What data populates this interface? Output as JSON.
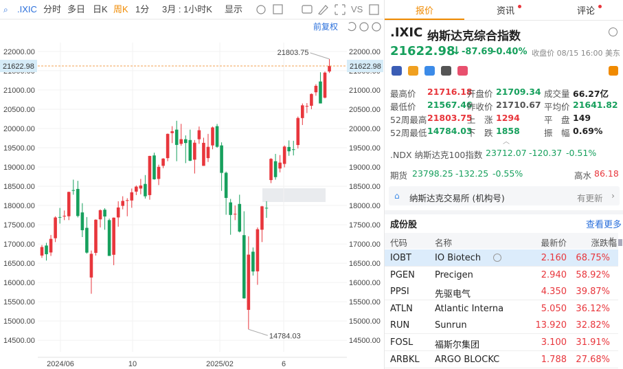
{
  "toolbar": {
    "symbol": ".IXIC",
    "tabs": [
      "分时",
      "多日",
      "日K",
      "周K",
      "1分",
      "3月 : 1小时K",
      "显示"
    ],
    "vs": "VS",
    "adjust": "前复权"
  },
  "chart_data": {
    "type": "candlestick",
    "ohlc": [
      [
        16700,
        16975,
        16640,
        16921
      ],
      [
        16960,
        17030,
        16570,
        16735
      ],
      [
        16780,
        17235,
        16690,
        17133
      ],
      [
        17150,
        17720,
        17050,
        17689
      ],
      [
        17700,
        17936,
        17530,
        17689
      ],
      [
        17720,
        17870,
        17620,
        17733
      ],
      [
        17720,
        18360,
        17620,
        18352
      ],
      [
        18400,
        18671,
        18280,
        18398
      ],
      [
        18430,
        18640,
        17690,
        17727
      ],
      [
        17820,
        18060,
        17180,
        17358
      ],
      [
        17420,
        17700,
        16750,
        16776
      ],
      [
        16130,
        16830,
        15708,
        16745
      ],
      [
        16770,
        17640,
        16700,
        17631
      ],
      [
        17640,
        17900,
        17430,
        17878
      ],
      [
        17890,
        17930,
        17370,
        17714
      ],
      [
        17620,
        17660,
        16690,
        16691
      ],
      [
        16720,
        17690,
        16450,
        17684
      ],
      [
        17690,
        18110,
        17450,
        17948
      ],
      [
        17990,
        18240,
        17900,
        18119
      ],
      [
        18130,
        18190,
        17720,
        18138
      ],
      [
        18130,
        18440,
        17940,
        18343
      ],
      [
        18360,
        18520,
        18270,
        18490
      ],
      [
        18440,
        18690,
        18290,
        18519
      ],
      [
        18560,
        18790,
        18180,
        18239
      ],
      [
        18270,
        19290,
        18150,
        19287
      ],
      [
        19300,
        19370,
        18670,
        18680
      ],
      [
        18690,
        19060,
        18530,
        19004
      ],
      [
        19030,
        19230,
        18970,
        19218
      ],
      [
        19230,
        19870,
        19150,
        19860
      ],
      [
        19880,
        20060,
        19620,
        19927
      ],
      [
        19970,
        20200,
        19150,
        19573
      ],
      [
        19600,
        20120,
        19550,
        19722
      ],
      [
        19720,
        19820,
        19100,
        19622
      ],
      [
        19700,
        19970,
        19150,
        19162
      ],
      [
        19190,
        19700,
        18830,
        19630
      ],
      [
        19720,
        20050,
        19600,
        19954
      ],
      [
        19030,
        19760,
        19030,
        19627
      ],
      [
        19230,
        19860,
        19130,
        19523
      ],
      [
        19560,
        20050,
        19460,
        20027
      ],
      [
        20060,
        20118,
        19500,
        19524
      ],
      [
        19560,
        19640,
        18380,
        18847
      ],
      [
        18850,
        18880,
        17760,
        18196
      ],
      [
        18080,
        18170,
        17240,
        17754
      ],
      [
        17770,
        18000,
        17620,
        17784
      ],
      [
        18040,
        18280,
        17300,
        17323
      ],
      [
        17230,
        17850,
        15580,
        15588
      ],
      [
        15290,
        17200,
        14784.03,
        16724
      ],
      [
        16800,
        16910,
        16180,
        16286
      ],
      [
        16290,
        17430,
        15940,
        17383
      ],
      [
        17370,
        17990,
        17050,
        17978
      ],
      [
        17940,
        18110,
        17680,
        17929
      ],
      [
        18660,
        19230,
        18580,
        19211
      ],
      [
        19150,
        19340,
        18670,
        18737
      ],
      [
        18960,
        19310,
        18860,
        19114
      ],
      [
        19080,
        19560,
        18990,
        19530
      ],
      [
        19520,
        19690,
        19290,
        19407
      ],
      [
        19460,
        19680,
        19300,
        19447
      ],
      [
        19570,
        20310,
        19480,
        20273
      ],
      [
        20270,
        20650,
        20090,
        20601
      ],
      [
        20570,
        20660,
        20400,
        20586
      ],
      [
        20590,
        20910,
        20500,
        20896
      ],
      [
        20940,
        21150,
        20850,
        21108
      ],
      [
        21220,
        21460,
        20650,
        20650
      ],
      [
        20800,
        21480,
        20780,
        21450
      ],
      [
        21480,
        21803.75,
        21440,
        21622.98
      ]
    ],
    "xtick_labels": [
      "2024/06",
      "10",
      "2025/02",
      "6"
    ],
    "ylim": [
      14200,
      22230
    ],
    "yticks": [
      {
        "value": 22000,
        "label": "22000.00"
      },
      {
        "value": 21500,
        "label": "21500.00"
      },
      {
        "value": 21000,
        "label": "21000.00"
      },
      {
        "value": 20500,
        "label": "20500.00"
      },
      {
        "value": 20000,
        "label": "20000.00"
      },
      {
        "value": 19500,
        "label": "19500.00"
      },
      {
        "value": 19000,
        "label": "19000.00"
      },
      {
        "value": 18500,
        "label": "18500.00"
      },
      {
        "value": 18000,
        "label": "18000.00"
      },
      {
        "value": 17500,
        "label": "17500.00"
      },
      {
        "value": 17000,
        "label": "17000.00"
      },
      {
        "value": 16500,
        "label": "16500.00"
      },
      {
        "value": 16000,
        "label": "16000.00"
      },
      {
        "value": 15500,
        "label": "15500.00"
      },
      {
        "value": 15000,
        "label": "15000.00"
      },
      {
        "value": 14500,
        "label": "14500.00"
      }
    ],
    "up_color": "#e8363c",
    "down_color": "#17a05d",
    "grid": true
  },
  "panel": {
    "tabs": [
      "报价",
      "资讯",
      "评论"
    ],
    "symbol": ".IXIC",
    "name": "纳斯达克综合指数",
    "price": "21622.98",
    "change": "-87.69",
    "change_pct": "-0.40%",
    "close_note": "收盘价 08/15 16:00 美东",
    "stats": [
      {
        "label": "最高价",
        "value": "21716.18",
        "color": "#e8363c"
      },
      {
        "label": "开盘价",
        "value": "21709.34",
        "color": "#17a05d"
      },
      {
        "label": "成交量",
        "value": "66.27亿",
        "color": "#222"
      },
      {
        "label": "最低价",
        "value": "21567.46",
        "color": "#17a05d"
      },
      {
        "label": "昨收价",
        "value": "21710.67",
        "color": "#555"
      },
      {
        "label": "平均价",
        "value": "21641.82",
        "color": "#17a05d"
      },
      {
        "label": "52周最高",
        "value": "21803.75",
        "color": "#e8363c"
      },
      {
        "label": "上　涨",
        "value": "1294",
        "color": "#e8363c"
      },
      {
        "label": "平　盘",
        "value": "149",
        "color": "#222"
      },
      {
        "label": "52周最低",
        "value": "14784.03",
        "color": "#17a05d"
      },
      {
        "label": "下　跌",
        "value": "1858",
        "color": "#17a05d"
      },
      {
        "label": "振　幅",
        "value": "0.69%",
        "color": "#222"
      }
    ],
    "related": [
      {
        "name": ".NDX 纳斯达克100指数",
        "price": "23712.07",
        "change": "-120.37",
        "pct": "-0.51%"
      },
      {
        "name": "期货",
        "price": "23798.25",
        "change": "-132.25",
        "pct": "-0.55%",
        "extra_label": "高水",
        "extra": "86.18"
      }
    ],
    "exchange": "纳斯达克交易所 (机构号)",
    "update": "有更新",
    "constituents_title": "成份股",
    "more": "查看更多",
    "columns": [
      "代码",
      "名称",
      "最新价",
      "涨跌幅"
    ],
    "rows": [
      [
        "IOBT",
        "IO Biotech",
        "2.160",
        "68.75%"
      ],
      [
        "PGEN",
        "Precigen",
        "2.940",
        "58.92%"
      ],
      [
        "PPSI",
        "先驱电气",
        "4.350",
        "39.87%"
      ],
      [
        "ATLN",
        "Atlantic Interna",
        "5.050",
        "36.12%"
      ],
      [
        "RUN",
        "Sunrun",
        "13.920",
        "32.82%"
      ],
      [
        "FOSL",
        "福斯尔集团",
        "3.100",
        "31.91%"
      ],
      [
        "ARBKL",
        "ARGO BLOCKC",
        "1.788",
        "27.68%"
      ]
    ]
  }
}
